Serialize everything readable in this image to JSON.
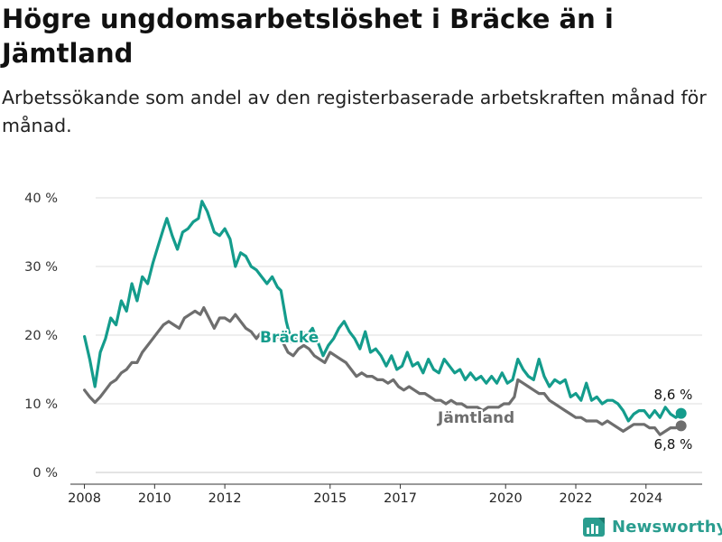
{
  "title": "Högre ungdomsarbetslöshet i Bräcke än i Jämtland",
  "subtitle": "Arbetssökande som andel av den registerbaserade arbetskraften månad för månad.",
  "brand": "Newsworthy",
  "colors": {
    "bracke": "#149c8c",
    "jamtland": "#6e6e6e",
    "grid": "#dcdcdc"
  },
  "chart_data": {
    "type": "line",
    "title": "Högre ungdomsarbetslöshet i Bräcke än i Jämtland",
    "subtitle": "Arbetssökande som andel av den registerbaserade arbetskraften månad för månad.",
    "xlabel": "",
    "ylabel": "",
    "xlim": [
      2007.6,
      2025.6
    ],
    "ylim": [
      0,
      40
    ],
    "x_ticks": [
      2008,
      2010,
      2012,
      2015,
      2017,
      2020,
      2022,
      2024
    ],
    "y_ticks": [
      {
        "value": 0,
        "label": "0 %"
      },
      {
        "value": 10,
        "label": "10 %"
      },
      {
        "value": 20,
        "label": "20 %"
      },
      {
        "value": 30,
        "label": "30 %"
      },
      {
        "value": 40,
        "label": "40 %"
      }
    ],
    "grid": "horizontal",
    "series": [
      {
        "name": "Bräcke",
        "end_label": "8,6 %",
        "points": [
          [
            2008.0,
            19.8
          ],
          [
            2008.15,
            16.5
          ],
          [
            2008.3,
            12.5
          ],
          [
            2008.45,
            17.5
          ],
          [
            2008.6,
            19.5
          ],
          [
            2008.75,
            22.5
          ],
          [
            2008.9,
            21.5
          ],
          [
            2009.05,
            25.0
          ],
          [
            2009.2,
            23.5
          ],
          [
            2009.35,
            27.5
          ],
          [
            2009.5,
            25.0
          ],
          [
            2009.65,
            28.5
          ],
          [
            2009.8,
            27.5
          ],
          [
            2009.95,
            30.5
          ],
          [
            2010.1,
            33.0
          ],
          [
            2010.25,
            35.5
          ],
          [
            2010.35,
            37.0
          ],
          [
            2010.5,
            34.5
          ],
          [
            2010.65,
            32.5
          ],
          [
            2010.8,
            35.0
          ],
          [
            2010.95,
            35.5
          ],
          [
            2011.1,
            36.5
          ],
          [
            2011.25,
            37.0
          ],
          [
            2011.35,
            39.5
          ],
          [
            2011.5,
            38.0
          ],
          [
            2011.6,
            36.5
          ],
          [
            2011.7,
            35.0
          ],
          [
            2011.85,
            34.5
          ],
          [
            2012.0,
            35.5
          ],
          [
            2012.15,
            34.0
          ],
          [
            2012.3,
            30.0
          ],
          [
            2012.45,
            32.0
          ],
          [
            2012.6,
            31.5
          ],
          [
            2012.75,
            30.0
          ],
          [
            2012.9,
            29.5
          ],
          [
            2013.05,
            28.5
          ],
          [
            2013.2,
            27.5
          ],
          [
            2013.35,
            28.5
          ],
          [
            2013.5,
            27.0
          ],
          [
            2013.6,
            26.5
          ],
          [
            2013.75,
            22.0
          ],
          [
            2013.9,
            19.0
          ],
          [
            2014.05,
            19.5
          ],
          [
            2014.2,
            20.5
          ],
          [
            2014.35,
            20.0
          ],
          [
            2014.5,
            21.0
          ],
          [
            2014.65,
            19.0
          ],
          [
            2014.8,
            17.0
          ],
          [
            2014.95,
            18.5
          ],
          [
            2015.1,
            19.5
          ],
          [
            2015.25,
            21.0
          ],
          [
            2015.4,
            22.0
          ],
          [
            2015.55,
            20.5
          ],
          [
            2015.7,
            19.5
          ],
          [
            2015.85,
            18.0
          ],
          [
            2016.0,
            20.5
          ],
          [
            2016.15,
            17.5
          ],
          [
            2016.3,
            18.0
          ],
          [
            2016.45,
            17.0
          ],
          [
            2016.6,
            15.5
          ],
          [
            2016.75,
            17.0
          ],
          [
            2016.9,
            15.0
          ],
          [
            2017.05,
            15.5
          ],
          [
            2017.2,
            17.5
          ],
          [
            2017.35,
            15.5
          ],
          [
            2017.5,
            16.0
          ],
          [
            2017.65,
            14.5
          ],
          [
            2017.8,
            16.5
          ],
          [
            2017.95,
            15.0
          ],
          [
            2018.1,
            14.5
          ],
          [
            2018.25,
            16.5
          ],
          [
            2018.4,
            15.5
          ],
          [
            2018.55,
            14.5
          ],
          [
            2018.7,
            15.0
          ],
          [
            2018.85,
            13.5
          ],
          [
            2019.0,
            14.5
          ],
          [
            2019.15,
            13.5
          ],
          [
            2019.3,
            14.0
          ],
          [
            2019.45,
            13.0
          ],
          [
            2019.6,
            14.0
          ],
          [
            2019.75,
            13.0
          ],
          [
            2019.9,
            14.5
          ],
          [
            2020.05,
            13.0
          ],
          [
            2020.2,
            13.5
          ],
          [
            2020.35,
            16.5
          ],
          [
            2020.5,
            15.0
          ],
          [
            2020.65,
            14.0
          ],
          [
            2020.8,
            13.5
          ],
          [
            2020.95,
            16.5
          ],
          [
            2021.1,
            14.0
          ],
          [
            2021.25,
            12.5
          ],
          [
            2021.4,
            13.5
          ],
          [
            2021.55,
            13.0
          ],
          [
            2021.7,
            13.5
          ],
          [
            2021.85,
            11.0
          ],
          [
            2022.0,
            11.5
          ],
          [
            2022.15,
            10.5
          ],
          [
            2022.3,
            13.0
          ],
          [
            2022.45,
            10.5
          ],
          [
            2022.6,
            11.0
          ],
          [
            2022.75,
            10.0
          ],
          [
            2022.9,
            10.5
          ],
          [
            2023.05,
            10.5
          ],
          [
            2023.2,
            10.0
          ],
          [
            2023.35,
            9.0
          ],
          [
            2023.5,
            7.5
          ],
          [
            2023.65,
            8.5
          ],
          [
            2023.8,
            9.0
          ],
          [
            2023.95,
            9.0
          ],
          [
            2024.1,
            8.0
          ],
          [
            2024.25,
            9.0
          ],
          [
            2024.4,
            8.0
          ],
          [
            2024.55,
            9.5
          ],
          [
            2024.7,
            8.5
          ],
          [
            2024.85,
            8.0
          ],
          [
            2025.0,
            8.6
          ]
        ]
      },
      {
        "name": "Jämtland",
        "end_label": "6,8 %",
        "points": [
          [
            2008.0,
            12.0
          ],
          [
            2008.15,
            11.0
          ],
          [
            2008.3,
            10.2
          ],
          [
            2008.45,
            11.0
          ],
          [
            2008.6,
            12.0
          ],
          [
            2008.75,
            13.0
          ],
          [
            2008.9,
            13.5
          ],
          [
            2009.05,
            14.5
          ],
          [
            2009.2,
            15.0
          ],
          [
            2009.35,
            16.0
          ],
          [
            2009.5,
            16.0
          ],
          [
            2009.65,
            17.5
          ],
          [
            2009.8,
            18.5
          ],
          [
            2009.95,
            19.5
          ],
          [
            2010.1,
            20.5
          ],
          [
            2010.25,
            21.5
          ],
          [
            2010.4,
            22.0
          ],
          [
            2010.55,
            21.5
          ],
          [
            2010.7,
            21.0
          ],
          [
            2010.85,
            22.5
          ],
          [
            2011.0,
            23.0
          ],
          [
            2011.15,
            23.5
          ],
          [
            2011.3,
            23.0
          ],
          [
            2011.4,
            24.0
          ],
          [
            2011.55,
            22.5
          ],
          [
            2011.7,
            21.0
          ],
          [
            2011.85,
            22.5
          ],
          [
            2012.0,
            22.5
          ],
          [
            2012.15,
            22.0
          ],
          [
            2012.3,
            23.0
          ],
          [
            2012.45,
            22.0
          ],
          [
            2012.6,
            21.0
          ],
          [
            2012.75,
            20.5
          ],
          [
            2012.9,
            19.5
          ],
          [
            2013.05,
            20.5
          ],
          [
            2013.4,
            20.0
          ],
          [
            2013.6,
            19.5
          ],
          [
            2013.8,
            17.5
          ],
          [
            2013.95,
            17.0
          ],
          [
            2014.1,
            18.0
          ],
          [
            2014.25,
            18.5
          ],
          [
            2014.4,
            18.0
          ],
          [
            2014.55,
            17.0
          ],
          [
            2014.7,
            16.5
          ],
          [
            2014.85,
            16.0
          ],
          [
            2015.0,
            17.5
          ],
          [
            2015.15,
            17.0
          ],
          [
            2015.3,
            16.5
          ],
          [
            2015.45,
            16.0
          ],
          [
            2015.6,
            15.0
          ],
          [
            2015.75,
            14.0
          ],
          [
            2015.9,
            14.5
          ],
          [
            2016.05,
            14.0
          ],
          [
            2016.2,
            14.0
          ],
          [
            2016.35,
            13.5
          ],
          [
            2016.5,
            13.5
          ],
          [
            2016.65,
            13.0
          ],
          [
            2016.8,
            13.5
          ],
          [
            2016.95,
            12.5
          ],
          [
            2017.1,
            12.0
          ],
          [
            2017.25,
            12.5
          ],
          [
            2017.4,
            12.0
          ],
          [
            2017.55,
            11.5
          ],
          [
            2017.7,
            11.5
          ],
          [
            2017.85,
            11.0
          ],
          [
            2018.0,
            10.5
          ],
          [
            2018.15,
            10.5
          ],
          [
            2018.3,
            10.0
          ],
          [
            2018.45,
            10.5
          ],
          [
            2018.6,
            10.0
          ],
          [
            2018.75,
            10.0
          ],
          [
            2018.9,
            9.5
          ],
          [
            2019.05,
            9.5
          ],
          [
            2019.2,
            9.5
          ],
          [
            2019.35,
            9.0
          ],
          [
            2019.5,
            9.5
          ],
          [
            2019.65,
            9.5
          ],
          [
            2019.8,
            9.5
          ],
          [
            2019.95,
            10.0
          ],
          [
            2020.1,
            10.0
          ],
          [
            2020.25,
            11.0
          ],
          [
            2020.35,
            13.5
          ],
          [
            2020.5,
            13.0
          ],
          [
            2020.65,
            12.5
          ],
          [
            2020.8,
            12.0
          ],
          [
            2020.95,
            11.5
          ],
          [
            2021.1,
            11.5
          ],
          [
            2021.25,
            10.5
          ],
          [
            2021.4,
            10.0
          ],
          [
            2021.55,
            9.5
          ],
          [
            2021.7,
            9.0
          ],
          [
            2021.85,
            8.5
          ],
          [
            2022.0,
            8.0
          ],
          [
            2022.15,
            8.0
          ],
          [
            2022.3,
            7.5
          ],
          [
            2022.45,
            7.5
          ],
          [
            2022.6,
            7.5
          ],
          [
            2022.75,
            7.0
          ],
          [
            2022.9,
            7.5
          ],
          [
            2023.05,
            7.0
          ],
          [
            2023.2,
            6.5
          ],
          [
            2023.35,
            6.0
          ],
          [
            2023.5,
            6.5
          ],
          [
            2023.65,
            7.0
          ],
          [
            2023.8,
            7.0
          ],
          [
            2023.95,
            7.0
          ],
          [
            2024.1,
            6.5
          ],
          [
            2024.25,
            6.5
          ],
          [
            2024.4,
            5.5
          ],
          [
            2024.55,
            6.0
          ],
          [
            2024.7,
            6.5
          ],
          [
            2024.85,
            6.5
          ],
          [
            2025.0,
            6.8
          ]
        ]
      }
    ]
  }
}
